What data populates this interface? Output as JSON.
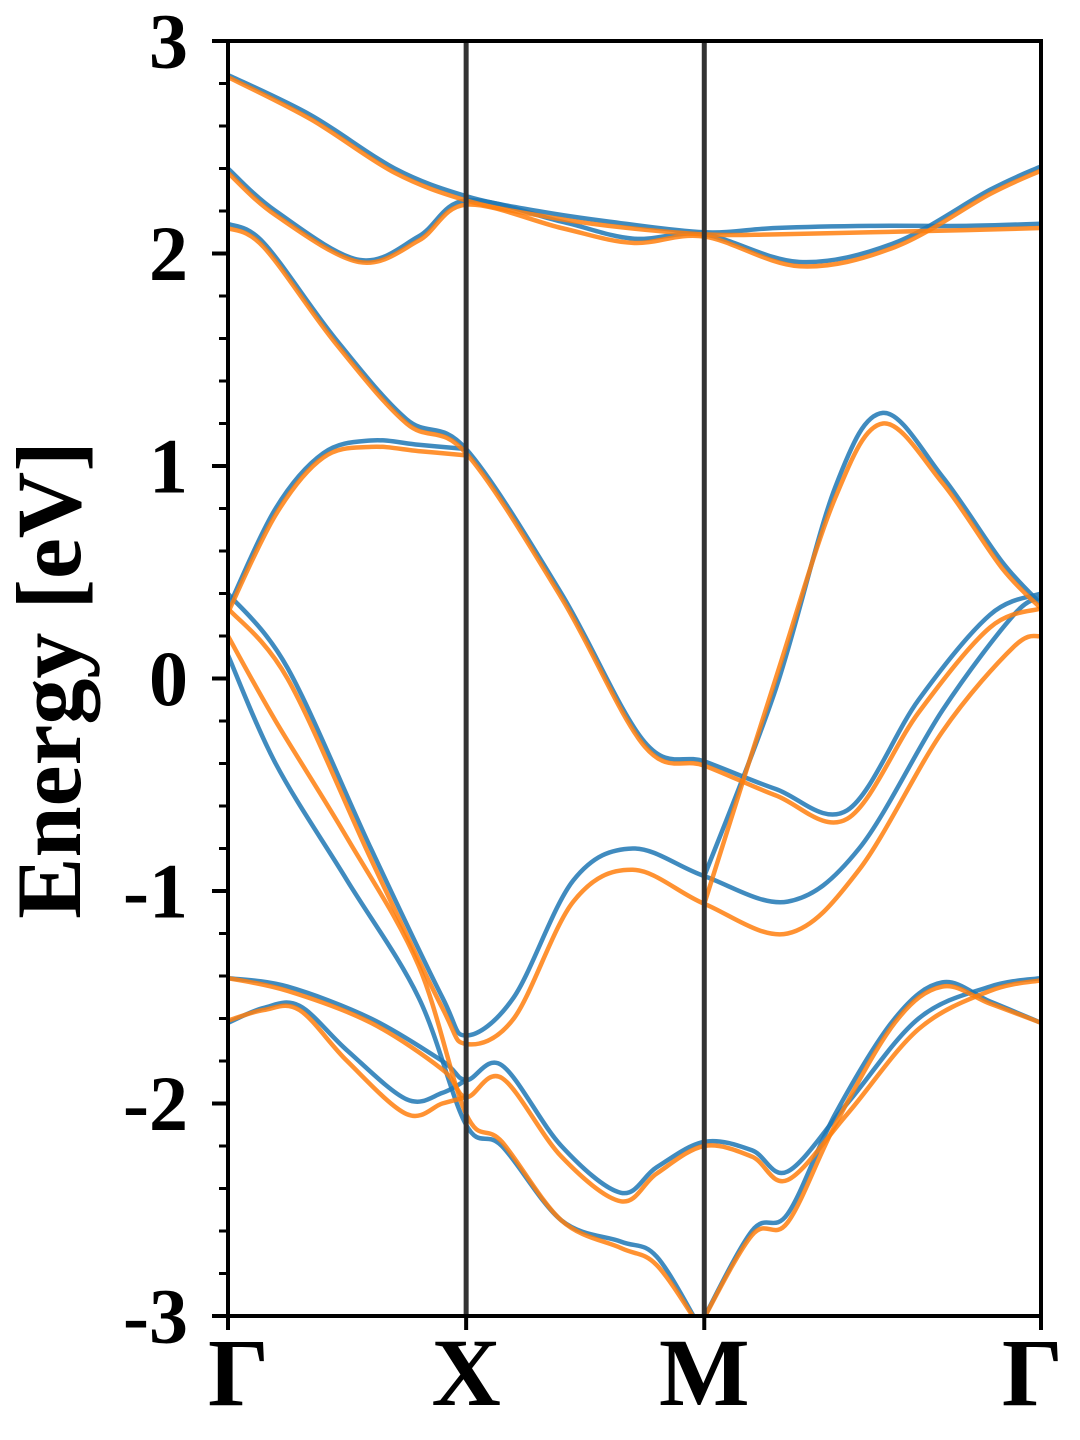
{
  "chart_data": {
    "type": "line",
    "title": "",
    "ylabel": "Energy [eV]",
    "xlabel": "",
    "ylim": [
      -3,
      3
    ],
    "yticks": [
      -3,
      -2,
      -1,
      0,
      1,
      2,
      3
    ],
    "ytick_labels": [
      "-3",
      "-2",
      "-1",
      "0",
      "1",
      "2",
      "3"
    ],
    "yminor_step": 0.2,
    "grid": false,
    "legend": "none",
    "x_range": [
      0,
      3.414
    ],
    "kpoints": [
      {
        "label": "Γ",
        "x": 0
      },
      {
        "label": "X",
        "x": 1
      },
      {
        "label": "M",
        "x": 2
      },
      {
        "label": "Γ",
        "x": 3.414
      }
    ],
    "colors": {
      "series_a": "#1f77b4",
      "series_b": "#ff7f0e",
      "divider": "#333333",
      "axes": "#000000"
    },
    "series": [
      {
        "color": "#1f77b4",
        "opacity": 0.85,
        "bands": [
          [
            [
              0,
              2.84
            ],
            [
              0.35,
              2.65
            ],
            [
              0.7,
              2.4
            ],
            [
              1,
              2.27
            ],
            [
              1.3,
              2.2
            ],
            [
              1.6,
              2.15
            ],
            [
              2,
              2.1
            ],
            [
              2.3,
              2.12
            ],
            [
              2.7,
              2.13
            ],
            [
              3.1,
              2.13
            ],
            [
              3.414,
              2.14
            ]
          ],
          [
            [
              0,
              2.4
            ],
            [
              0.2,
              2.2
            ],
            [
              0.55,
              1.97
            ],
            [
              0.8,
              2.08
            ],
            [
              1,
              2.25
            ],
            [
              1.4,
              2.15
            ],
            [
              1.7,
              2.07
            ],
            [
              2,
              2.09
            ],
            [
              2.4,
              1.96
            ],
            [
              2.8,
              2.05
            ],
            [
              3.2,
              2.3
            ],
            [
              3.414,
              2.41
            ]
          ],
          [
            [
              0,
              2.14
            ],
            [
              0.15,
              2.05
            ],
            [
              0.45,
              1.6
            ],
            [
              0.75,
              1.22
            ],
            [
              1,
              1.08
            ],
            [
              1.4,
              0.4
            ],
            [
              1.75,
              -0.3
            ],
            [
              2,
              -0.39
            ],
            [
              2.3,
              -0.52
            ],
            [
              2.6,
              -0.62
            ],
            [
              2.9,
              -0.1
            ],
            [
              3.2,
              0.3
            ],
            [
              3.414,
              0.4
            ]
          ],
          [
            [
              0,
              0.33
            ],
            [
              0.2,
              0.8
            ],
            [
              0.4,
              1.06
            ],
            [
              0.6,
              1.12
            ],
            [
              0.8,
              1.1
            ],
            [
              1,
              1.08
            ]
          ],
          [
            [
              2,
              -0.93
            ],
            [
              2.3,
              -0.05
            ],
            [
              2.55,
              0.9
            ],
            [
              2.75,
              1.25
            ],
            [
              3.0,
              0.95
            ],
            [
              3.25,
              0.55
            ],
            [
              3.414,
              0.35
            ]
          ],
          [
            [
              0,
              0.4
            ],
            [
              0.25,
              0.05
            ],
            [
              0.6,
              -0.8
            ],
            [
              0.9,
              -1.5
            ],
            [
              1,
              -1.68
            ],
            [
              1.2,
              -1.5
            ],
            [
              1.45,
              -0.95
            ],
            [
              1.7,
              -0.8
            ],
            [
              2,
              -0.93
            ],
            [
              2.35,
              -1.05
            ],
            [
              2.65,
              -0.8
            ],
            [
              3.0,
              -0.15
            ],
            [
              3.3,
              0.3
            ],
            [
              3.414,
              0.38
            ]
          ],
          [
            [
              0,
              0.11
            ],
            [
              0.2,
              -0.4
            ],
            [
              0.5,
              -0.95
            ],
            [
              0.8,
              -1.5
            ],
            [
              1,
              -2.1
            ],
            [
              1.15,
              -2.2
            ],
            [
              1.4,
              -2.55
            ],
            [
              1.65,
              -2.65
            ],
            [
              1.8,
              -2.72
            ],
            [
              1.98,
              -3.05
            ]
          ],
          [
            [
              0,
              -1.41
            ],
            [
              0.25,
              -1.45
            ],
            [
              0.6,
              -1.6
            ],
            [
              0.9,
              -1.8
            ],
            [
              1,
              -1.89
            ],
            [
              1.15,
              -1.82
            ],
            [
              1.4,
              -2.2
            ],
            [
              1.65,
              -2.42
            ],
            [
              1.8,
              -2.3
            ],
            [
              2,
              -2.18
            ],
            [
              2.2,
              -2.22
            ],
            [
              2.35,
              -2.32
            ],
            [
              2.6,
              -2.0
            ],
            [
              2.9,
              -1.6
            ],
            [
              3.2,
              -1.45
            ],
            [
              3.414,
              -1.41
            ]
          ],
          [
            [
              0,
              -1.62
            ],
            [
              0.15,
              -1.55
            ],
            [
              0.3,
              -1.54
            ],
            [
              0.5,
              -1.75
            ],
            [
              0.75,
              -1.98
            ],
            [
              0.9,
              -1.95
            ],
            [
              1,
              -1.89
            ]
          ],
          [
            [
              1.98,
              -3.05
            ],
            [
              2.2,
              -2.6
            ],
            [
              2.35,
              -2.52
            ],
            [
              2.55,
              -2.05
            ],
            [
              2.8,
              -1.6
            ],
            [
              3.0,
              -1.43
            ],
            [
              3.2,
              -1.52
            ],
            [
              3.414,
              -1.62
            ]
          ]
        ]
      },
      {
        "color": "#ff7f0e",
        "opacity": 0.85,
        "bands": [
          [
            [
              0,
              2.83
            ],
            [
              0.35,
              2.63
            ],
            [
              0.7,
              2.38
            ],
            [
              1,
              2.25
            ],
            [
              1.3,
              2.18
            ],
            [
              1.6,
              2.13
            ],
            [
              2,
              2.09
            ],
            [
              2.3,
              2.09
            ],
            [
              2.7,
              2.1
            ],
            [
              3.1,
              2.11
            ],
            [
              3.414,
              2.12
            ]
          ],
          [
            [
              0,
              2.38
            ],
            [
              0.2,
              2.18
            ],
            [
              0.55,
              1.96
            ],
            [
              0.8,
              2.06
            ],
            [
              1,
              2.23
            ],
            [
              1.4,
              2.12
            ],
            [
              1.7,
              2.05
            ],
            [
              2,
              2.08
            ],
            [
              2.4,
              1.94
            ],
            [
              2.8,
              2.03
            ],
            [
              3.2,
              2.28
            ],
            [
              3.414,
              2.39
            ]
          ],
          [
            [
              0,
              2.12
            ],
            [
              0.15,
              2.03
            ],
            [
              0.45,
              1.58
            ],
            [
              0.75,
              1.2
            ],
            [
              1,
              1.06
            ],
            [
              1.4,
              0.38
            ],
            [
              1.75,
              -0.32
            ],
            [
              2,
              -0.41
            ],
            [
              2.3,
              -0.55
            ],
            [
              2.6,
              -0.66
            ],
            [
              2.9,
              -0.16
            ],
            [
              3.2,
              0.24
            ],
            [
              3.414,
              0.33
            ]
          ],
          [
            [
              0,
              0.31
            ],
            [
              0.2,
              0.77
            ],
            [
              0.4,
              1.04
            ],
            [
              0.6,
              1.09
            ],
            [
              0.8,
              1.07
            ],
            [
              1,
              1.05
            ]
          ],
          [
            [
              2,
              -1.06
            ],
            [
              2.3,
              0.0
            ],
            [
              2.55,
              0.85
            ],
            [
              2.75,
              1.2
            ],
            [
              3.0,
              0.92
            ],
            [
              3.25,
              0.52
            ],
            [
              3.414,
              0.33
            ]
          ],
          [
            [
              0,
              0.33
            ],
            [
              0.25,
              0.0
            ],
            [
              0.6,
              -0.85
            ],
            [
              0.9,
              -1.55
            ],
            [
              1,
              -1.72
            ],
            [
              1.2,
              -1.6
            ],
            [
              1.45,
              -1.05
            ],
            [
              1.7,
              -0.9
            ],
            [
              2,
              -1.06
            ],
            [
              2.35,
              -1.2
            ],
            [
              2.65,
              -0.9
            ],
            [
              3.0,
              -0.25
            ],
            [
              3.3,
              0.15
            ],
            [
              3.414,
              0.2
            ]
          ],
          [
            [
              0,
              0.2
            ],
            [
              0.2,
              -0.2
            ],
            [
              0.5,
              -0.75
            ],
            [
              0.8,
              -1.35
            ],
            [
              1,
              -2.05
            ],
            [
              1.15,
              -2.18
            ],
            [
              1.4,
              -2.55
            ],
            [
              1.65,
              -2.68
            ],
            [
              1.8,
              -2.76
            ],
            [
              1.98,
              -3.05
            ]
          ],
          [
            [
              0,
              -1.41
            ],
            [
              0.25,
              -1.47
            ],
            [
              0.6,
              -1.62
            ],
            [
              0.9,
              -1.84
            ],
            [
              1,
              -1.97
            ],
            [
              1.15,
              -1.88
            ],
            [
              1.4,
              -2.25
            ],
            [
              1.65,
              -2.46
            ],
            [
              1.8,
              -2.33
            ],
            [
              2,
              -2.2
            ],
            [
              2.2,
              -2.25
            ],
            [
              2.35,
              -2.36
            ],
            [
              2.6,
              -2.05
            ],
            [
              2.9,
              -1.65
            ],
            [
              3.2,
              -1.47
            ],
            [
              3.414,
              -1.42
            ]
          ],
          [
            [
              0,
              -1.61
            ],
            [
              0.15,
              -1.56
            ],
            [
              0.3,
              -1.56
            ],
            [
              0.5,
              -1.8
            ],
            [
              0.75,
              -2.05
            ],
            [
              0.9,
              -2.0
            ],
            [
              1,
              -1.97
            ]
          ],
          [
            [
              1.98,
              -3.05
            ],
            [
              2.2,
              -2.62
            ],
            [
              2.35,
              -2.56
            ],
            [
              2.55,
              -2.1
            ],
            [
              2.8,
              -1.62
            ],
            [
              3.0,
              -1.45
            ],
            [
              3.2,
              -1.53
            ],
            [
              3.414,
              -1.62
            ]
          ]
        ]
      }
    ]
  }
}
